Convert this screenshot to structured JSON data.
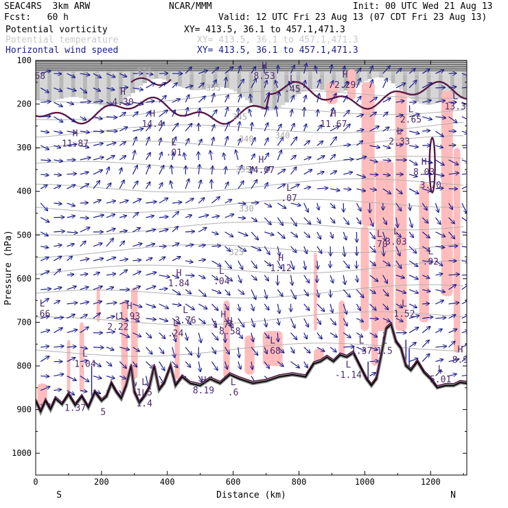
{
  "header": {
    "model": "SEAC4RS  3km ARW",
    "org": "NCAR/MMM",
    "init": "Init: 00 UTC Wed 21 Aug 13",
    "fcst": "Fcst:   60 h",
    "valid": "Valid: 12 UTC Fri 23 Aug 13 (07 CDT Fri 23 Aug 13)"
  },
  "legend": [
    {
      "name": "Potential vorticity",
      "xy": "XY= 413.5, 36.1 to 457.1,471.3",
      "color": "#000000"
    },
    {
      "name": "Potential temperature",
      "xy": "XY= 413.5, 36.1 to 457.1,471.3",
      "color": "#c8c8c8"
    },
    {
      "name": "Horizontal wind speed",
      "xy": "XY= 413.5, 36.1 to 457.1,471.3",
      "color": "#1a1a8c"
    }
  ],
  "colors": {
    "wind": "#1a1a8c",
    "pv_contour": "#5a1846",
    "theta": "#b0b0b0",
    "pv_positive_shade": "#ffbcbc",
    "pv_high_shade": "#9a9a9a",
    "terrain": "#ffffff",
    "marker": "#4a2a6a"
  },
  "chart_data": {
    "type": "cross-section",
    "xlabel": "Distance (km)",
    "ylabel": "Pressure (hPa)",
    "xlim": [
      0,
      1310
    ],
    "ylim": [
      100,
      1050
    ],
    "y_reversed": true,
    "x_ticks": [
      0,
      200,
      400,
      600,
      800,
      1000,
      1200
    ],
    "y_ticks": [
      100,
      200,
      300,
      400,
      500,
      600,
      700,
      800,
      900,
      1000
    ],
    "x_end_labels": {
      "left": "S",
      "right": "N"
    },
    "theta_contours": [
      {
        "label": "345",
        "x": 620,
        "p": 230
      },
      {
        "label": "340",
        "x": 640,
        "p": 280
      },
      {
        "label": "340",
        "x": 750,
        "p": 272
      },
      {
        "label": "335",
        "x": 630,
        "p": 350
      },
      {
        "label": "330",
        "x": 640,
        "p": 440
      },
      {
        "label": "325",
        "x": 610,
        "p": 540
      },
      {
        "label": "355",
        "x": 540,
        "p": 163
      },
      {
        "label": "370",
        "x": 330,
        "p": 125
      }
    ],
    "extrema": [
      {
        "type": "H",
        "value": "4.30",
        "x": 265,
        "p": 190
      },
      {
        "type": "H",
        "value": "11.87",
        "x": 120,
        "p": 285
      },
      {
        "type": "H",
        "value": "14.4",
        "x": 355,
        "p": 240
      },
      {
        "type": "L",
        "value": ".01",
        "x": 420,
        "p": 305
      },
      {
        "type": "H",
        "value": "14.07",
        "x": 685,
        "p": 345
      },
      {
        "type": "L",
        "value": ".07",
        "x": 770,
        "p": 410
      },
      {
        "type": "H",
        "value": "8.53",
        "x": 695,
        "p": 130
      },
      {
        "type": "L",
        "value": ".45",
        "x": 780,
        "p": 160
      },
      {
        "type": "H",
        "value": "2.29",
        "x": 940,
        "p": 150
      },
      {
        "type": "H",
        "value": "11.67",
        "x": 905,
        "p": 240
      },
      {
        "type": "L",
        "value": "2.65",
        "x": 1140,
        "p": 230
      },
      {
        "type": "L",
        "value": "2.33",
        "x": 1105,
        "p": 280
      },
      {
        "type": "L",
        "value": "13.3",
        "x": 1275,
        "p": 200
      },
      {
        "type": "H",
        "value": "8.03",
        "x": 1180,
        "p": 350
      },
      {
        "type": "",
        "value": "3.70",
        "x": 1200,
        "p": 380
      },
      {
        "type": "L",
        "value": ".70",
        "x": 1045,
        "p": 515
      },
      {
        "type": "L",
        "value": "3.03",
        "x": 1095,
        "p": 510
      },
      {
        "type": "L",
        "value": ".92",
        "x": 1200,
        "p": 555
      },
      {
        "type": "H",
        "value": "1.12",
        "x": 745,
        "p": 570
      },
      {
        "type": "H",
        "value": "1.84",
        "x": 435,
        "p": 605
      },
      {
        "type": "L",
        "value": ".04",
        "x": 565,
        "p": 600
      },
      {
        "type": "H",
        "value": "1.93",
        "x": 285,
        "p": 680
      },
      {
        "type": "L",
        "value": "2.22",
        "x": 250,
        "p": 705
      },
      {
        "type": "L",
        "value": "3.76",
        "x": 455,
        "p": 690
      },
      {
        "type": "L",
        "value": ".24",
        "x": 425,
        "p": 720
      },
      {
        "type": "H",
        "value": "1.76",
        "x": 570,
        "p": 700
      },
      {
        "type": "H",
        "value": "8.58",
        "x": 590,
        "p": 715
      },
      {
        "type": "L",
        "value": ".66",
        "x": 20,
        "p": 675
      },
      {
        "type": "L",
        "value": "1.04",
        "x": 150,
        "p": 790
      },
      {
        "type": "L",
        "value": ".68",
        "x": 720,
        "p": 760
      },
      {
        "type": "L",
        "value": "1.37",
        "x": 990,
        "p": 760
      },
      {
        "type": "L",
        "value": "1.5",
        "x": 1060,
        "p": 760
      },
      {
        "type": "L",
        "value": "1.52",
        "x": 1120,
        "p": 675
      },
      {
        "type": "L",
        "value": "-1.14",
        "x": 950,
        "p": 815
      },
      {
        "type": "L",
        "value": "1.5",
        "x": 330,
        "p": 855
      },
      {
        "type": "L",
        "value": "1.4",
        "x": 330,
        "p": 880
      },
      {
        "type": "H",
        "value": "8.19",
        "x": 510,
        "p": 850
      },
      {
        "type": "L",
        "value": ".6",
        "x": 600,
        "p": 855
      },
      {
        "type": "",
        "value": "1.37",
        "x": 120,
        "p": 890
      },
      {
        "type": "",
        "value": "5",
        "x": 205,
        "p": 900
      },
      {
        "type": "L",
        "value": "5.01",
        "x": 1230,
        "p": 825
      },
      {
        "type": "H",
        "value": "8.9",
        "x": 1290,
        "p": 780
      },
      {
        "type": "",
        "value": ".68",
        "x": 5,
        "p": 130
      }
    ]
  }
}
